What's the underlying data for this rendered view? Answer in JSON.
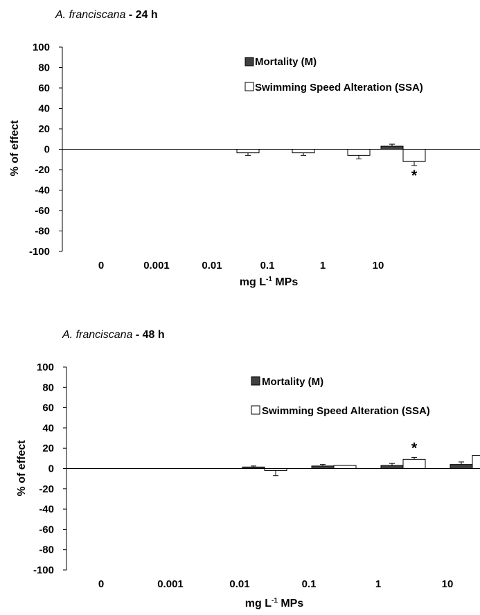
{
  "chart_data": [
    {
      "type": "bar",
      "title_species": "A. franciscana",
      "title_suffix": " - 24 h",
      "categories": [
        "0",
        "0.001",
        "0.01",
        "0.1",
        "1",
        "10"
      ],
      "xlabel": "mg L",
      "xlabel_sup": "-1",
      "xlabel_tail": " MPs",
      "ylabel": "% of effect",
      "ylim": [
        -100,
        100
      ],
      "yticks": [
        100,
        80,
        60,
        40,
        20,
        0,
        -20,
        -40,
        -60,
        -80,
        -100
      ],
      "legend_placement": "top-right",
      "series": [
        {
          "name": "Mortality (M)",
          "color": "#404040",
          "values": [
            0,
            0,
            0,
            0,
            0,
            3
          ],
          "errors": [
            0,
            0,
            0,
            0,
            0,
            2
          ]
        },
        {
          "name": "Swimming Speed Alteration (SSA)",
          "color": "#ffffff",
          "values": [
            0,
            0,
            -3.5,
            -3.5,
            -6,
            -12
          ],
          "errors": [
            0,
            0,
            2.5,
            2.5,
            3.5,
            4
          ]
        }
      ],
      "significance": [
        {
          "series": 1,
          "category": 5,
          "label": "*"
        }
      ]
    },
    {
      "type": "bar",
      "title_species": "A. franciscana",
      "title_suffix": " - 48 h",
      "categories": [
        "0",
        "0.001",
        "0.01",
        "0.1",
        "1",
        "10"
      ],
      "xlabel": "mg L",
      "xlabel_sup": "-1",
      "xlabel_tail": " MPs",
      "ylabel": "% of effect",
      "ylim": [
        -100,
        100
      ],
      "yticks": [
        100,
        80,
        60,
        40,
        20,
        0,
        -20,
        -40,
        -60,
        -80,
        -100
      ],
      "legend_placement": "top-right",
      "series": [
        {
          "name": "Mortality (M)",
          "color": "#404040",
          "values": [
            0,
            0,
            1.5,
            2.5,
            3,
            4
          ],
          "errors": [
            0,
            0,
            1,
            1.5,
            2,
            2.5
          ]
        },
        {
          "name": "Swimming Speed Alteration (SSA)",
          "color": "#ffffff",
          "values": [
            0,
            0,
            -2,
            3,
            9,
            13
          ],
          "errors": [
            0,
            0,
            5,
            0,
            2,
            2.5
          ]
        }
      ],
      "significance": [
        {
          "series": 1,
          "category": 4,
          "label": "*"
        },
        {
          "series": 1,
          "category": 5,
          "label": "*"
        }
      ]
    }
  ]
}
